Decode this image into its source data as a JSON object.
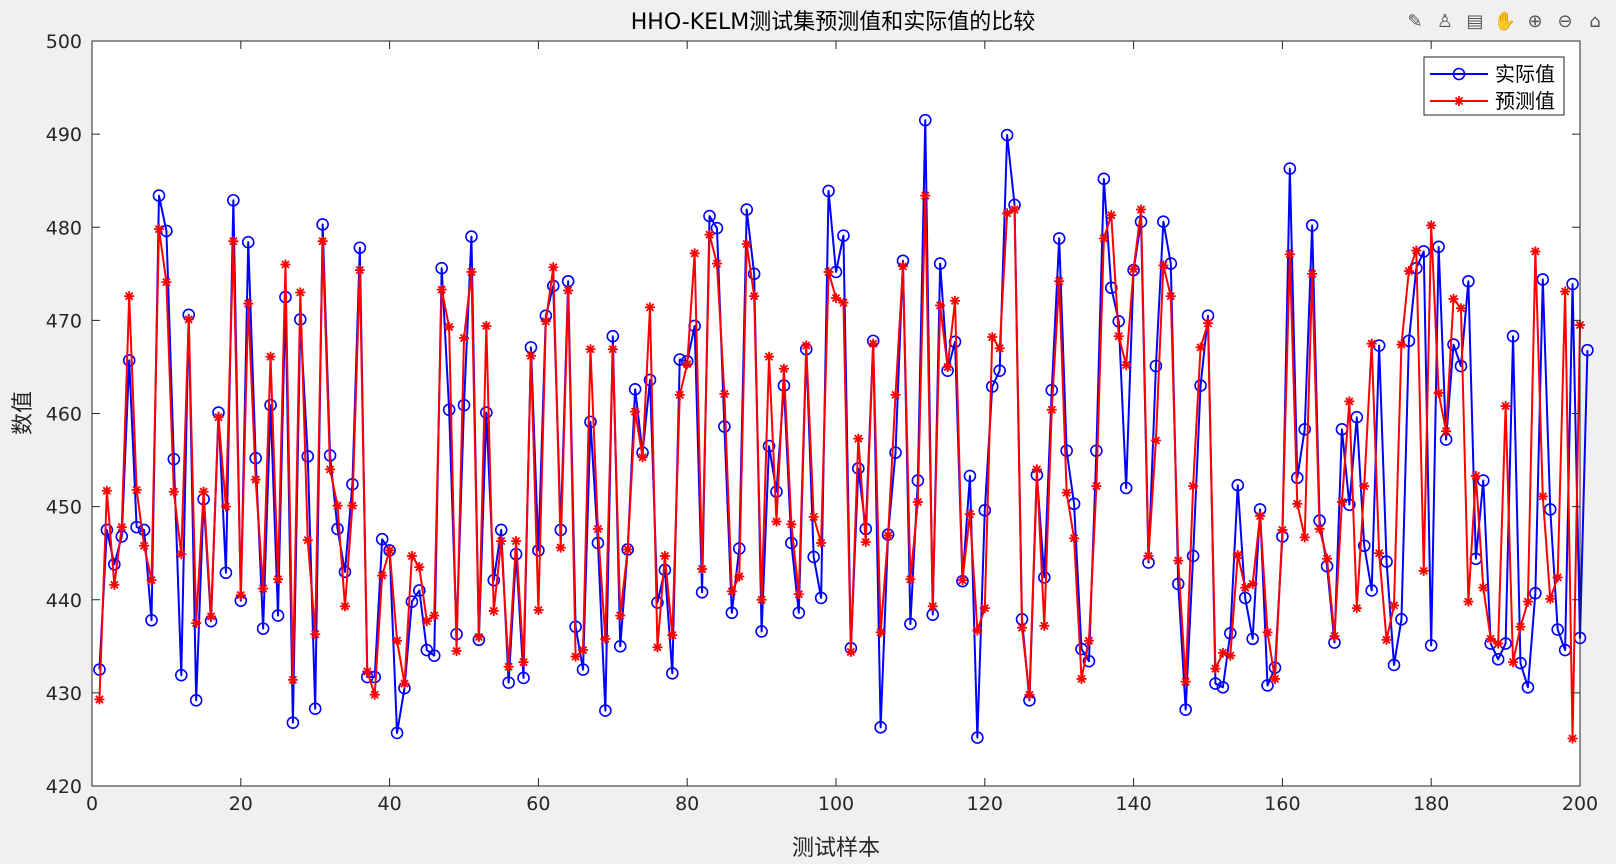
{
  "toolbar": [
    {
      "name": "brush-icon",
      "glyph": "✎"
    },
    {
      "name": "data-tips-icon",
      "glyph": "♙"
    },
    {
      "name": "save-icon",
      "glyph": "▤"
    },
    {
      "name": "pan-icon",
      "glyph": "✋"
    },
    {
      "name": "zoom-in-icon",
      "glyph": "⊕"
    },
    {
      "name": "zoom-out-icon",
      "glyph": "⊖"
    },
    {
      "name": "home-icon",
      "glyph": "⌂"
    }
  ],
  "chart_data": {
    "type": "line",
    "title": "HHO-KELM测试集预测值和实际值的比较",
    "xlabel": "测试样本",
    "ylabel": "数值",
    "xlim": [
      0,
      200
    ],
    "ylim": [
      420,
      500
    ],
    "xticks": [
      0,
      20,
      40,
      60,
      80,
      100,
      120,
      140,
      160,
      180,
      200
    ],
    "yticks": [
      420,
      430,
      440,
      450,
      460,
      470,
      480,
      490,
      500
    ],
    "grid": false,
    "legend_position": "top-right",
    "series": [
      {
        "name": "实际值",
        "color": "#0000ff",
        "marker": "circle",
        "values": [
          432.5,
          447.5,
          443.8,
          446.8,
          465.7,
          447.8,
          447.5,
          437.8,
          483.4,
          479.6,
          455.1,
          431.9,
          470.6,
          429.2,
          450.8,
          437.7,
          460.1,
          442.9,
          482.9,
          439.9,
          478.4,
          455.2,
          436.9,
          460.9,
          438.3,
          472.5,
          426.8,
          470.1,
          455.4,
          428.3,
          480.3,
          455.5,
          447.6,
          443.0,
          452.4,
          477.8,
          431.7,
          431.7,
          446.5,
          445.3,
          425.7,
          430.5,
          439.8,
          441.0,
          434.6,
          434.0,
          475.6,
          460.4,
          436.3,
          460.9,
          479.0,
          435.7,
          460.1,
          442.1,
          447.5,
          431.1,
          444.9,
          431.6,
          467.1,
          445.3,
          470.5,
          473.7,
          447.5,
          474.2,
          437.1,
          432.5,
          459.1,
          446.1,
          428.1,
          468.3,
          435.0,
          445.4,
          462.6,
          455.8,
          463.6,
          439.7,
          443.2,
          432.1,
          465.8,
          465.6,
          469.4,
          440.8,
          481.2,
          479.9,
          458.6,
          438.6,
          445.5,
          481.9,
          475.0,
          436.6,
          456.5,
          451.6,
          463.0,
          446.1,
          438.6,
          466.9,
          444.6,
          440.2,
          483.9,
          475.2,
          479.1,
          434.8,
          454.1,
          447.6,
          467.8,
          426.3,
          447.0,
          455.8,
          476.4,
          437.4,
          452.8,
          491.5,
          438.4,
          476.1,
          464.6,
          467.7,
          442.0,
          453.3,
          425.2,
          449.6,
          462.9,
          464.6,
          489.9,
          482.4,
          437.9,
          429.2,
          453.4,
          442.4,
          462.5,
          478.8,
          456.0,
          450.3,
          434.7,
          433.4,
          456.0,
          485.2,
          473.5,
          469.9,
          452.0,
          475.4,
          480.6,
          444.0,
          465.1,
          480.6,
          476.1,
          441.7,
          428.2,
          444.7,
          463.0,
          470.5,
          431.0,
          430.6,
          436.4,
          452.3,
          440.2,
          435.8,
          449.7,
          430.8,
          432.7,
          446.8,
          486.3,
          453.1,
          458.3,
          480.2,
          448.5,
          443.6,
          435.4,
          458.3,
          450.2,
          459.6,
          445.8,
          441.0,
          467.3,
          444.1,
          433.0,
          437.9,
          467.8,
          475.6,
          477.4,
          435.1,
          477.9,
          457.2,
          467.4,
          465.1,
          474.2,
          444.4,
          452.8,
          435.3,
          433.6,
          435.3,
          468.3,
          433.2,
          430.6,
          440.7,
          474.4,
          449.7,
          436.8,
          434.6,
          473.9,
          435.9,
          466.8
        ]
      },
      {
        "name": "预测值",
        "color": "#ff0000",
        "marker": "asterisk",
        "values": [
          429.3,
          451.7,
          441.6,
          447.8,
          472.6,
          451.8,
          445.8,
          442.1,
          479.8,
          474.1,
          451.6,
          444.9,
          470.1,
          437.5,
          451.6,
          438.2,
          459.6,
          450.0,
          478.5,
          440.5,
          471.8,
          452.9,
          441.2,
          466.1,
          442.2,
          476.0,
          431.4,
          473.0,
          446.4,
          436.3,
          478.5,
          454.0,
          450.1,
          439.3,
          450.1,
          475.4,
          432.3,
          429.8,
          442.6,
          445.3,
          435.6,
          431.0,
          444.7,
          443.5,
          437.7,
          438.3,
          473.3,
          469.3,
          434.5,
          468.1,
          475.2,
          436.0,
          469.4,
          438.8,
          446.3,
          432.8,
          446.3,
          433.3,
          466.2,
          438.9,
          469.9,
          475.7,
          445.6,
          473.2,
          433.9,
          434.6,
          466.9,
          447.6,
          435.8,
          466.9,
          438.3,
          445.4,
          460.2,
          455.3,
          471.4,
          434.9,
          444.7,
          436.2,
          462.0,
          465.3,
          477.2,
          443.3,
          479.2,
          476.1,
          462.1,
          440.9,
          442.5,
          478.2,
          472.6,
          440.0,
          466.1,
          448.4,
          464.8,
          448.1,
          440.6,
          467.3,
          448.9,
          446.1,
          475.2,
          472.4,
          471.9,
          434.4,
          457.3,
          446.2,
          467.5,
          436.5,
          446.9,
          462.0,
          475.8,
          442.2,
          450.5,
          483.4,
          439.3,
          471.6,
          465.0,
          472.1,
          442.1,
          449.2,
          436.7,
          439.1,
          468.2,
          467.0,
          481.5,
          481.9,
          437.0,
          429.8,
          454.0,
          437.2,
          460.4,
          474.2,
          451.5,
          446.6,
          431.5,
          435.6,
          452.2,
          478.8,
          481.3,
          468.3,
          465.2,
          475.5,
          481.9,
          444.7,
          457.1,
          475.9,
          472.6,
          444.2,
          431.2,
          452.2,
          467.1,
          469.7,
          432.6,
          434.3,
          434.0,
          444.8,
          441.3,
          441.7,
          449.0,
          436.5,
          431.5,
          447.5,
          477.1,
          450.3,
          446.7,
          475.0,
          447.6,
          444.4,
          436.1,
          450.5,
          461.3,
          439.1,
          452.2,
          467.5,
          445.0,
          435.7,
          439.4,
          467.4,
          475.3,
          477.5,
          443.1,
          480.2,
          462.2,
          458.1,
          472.3,
          471.3,
          439.8,
          453.3,
          441.3,
          435.8,
          435.3,
          460.8,
          433.3,
          437.1,
          439.8,
          477.4,
          451.1,
          440.1,
          442.4,
          473.1,
          425.1,
          469.5
        ]
      }
    ]
  }
}
